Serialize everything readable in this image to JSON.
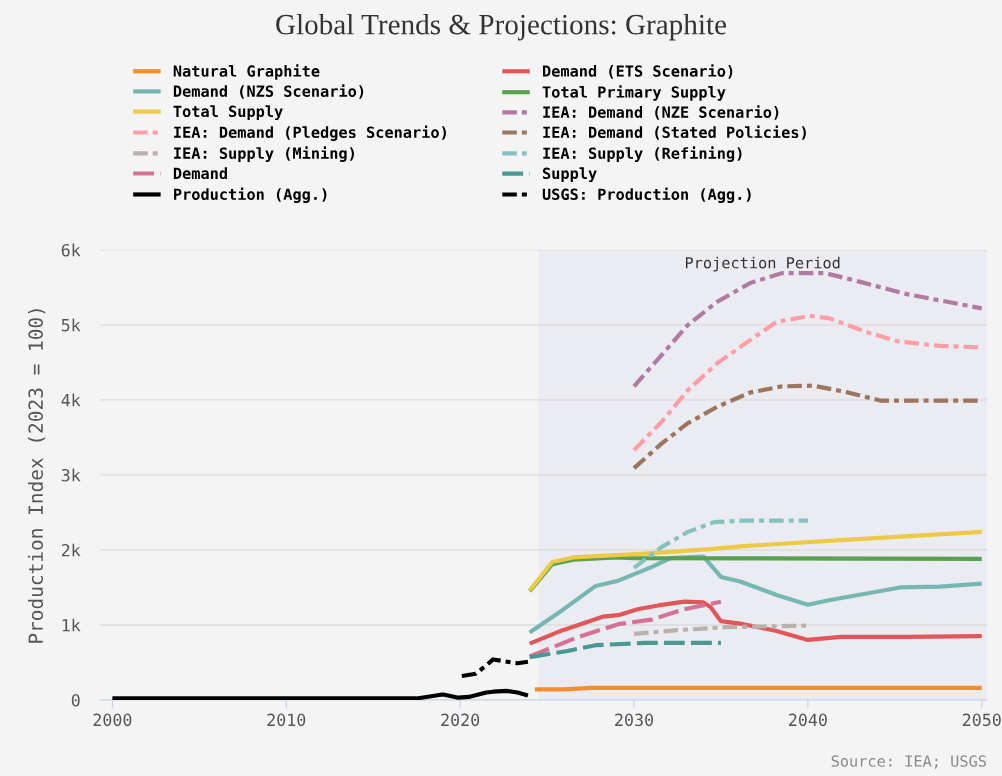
{
  "chart_data": {
    "type": "line",
    "title": "Global Trends & Projections: Graphite",
    "ylabel": "Production Index (2023 = 100)",
    "xlim": [
      1999.3,
      2050.3
    ],
    "xticks": [
      2000,
      2010,
      2020,
      2030,
      2040,
      2050
    ],
    "ylim": [
      0,
      6000
    ],
    "yticks": [
      0,
      {
        "value": 1000,
        "label": "1k"
      },
      {
        "value": 2000,
        "label": "2k"
      },
      {
        "value": 3000,
        "label": "3k"
      },
      {
        "value": 4000,
        "label": "4k"
      },
      {
        "value": 5000,
        "label": "5k"
      },
      {
        "value": 6000,
        "label": "6k"
      }
    ],
    "grid": "y",
    "legend": "top",
    "bands": [
      {
        "axis": "x",
        "from": 2024.5,
        "to": 2050.3,
        "label": "Projection Period",
        "color": "#ebebf2"
      }
    ],
    "annotations": [
      "Source: IEA; USGS"
    ],
    "series": [
      {
        "name": "Natural Graphite",
        "color": "#f28e2b",
        "line_style": "solid",
        "x": [
          2024.3,
          2026,
          2027.5,
          2028,
          2050
        ],
        "values": [
          140,
          140,
          160,
          160,
          160
        ]
      },
      {
        "name": "Demand (ETS Scenario)",
        "color": "#e15759",
        "line_style": "solid",
        "x": [
          2024,
          2025.9,
          2028.2,
          2029.1,
          2030.2,
          2031.4,
          2032.9,
          2034,
          2034.4,
          2035,
          2036.3,
          2038.2,
          2040,
          2041.9,
          2045.7,
          2050
        ],
        "values": [
          750,
          930,
          1110,
          1130,
          1210,
          1260,
          1310,
          1300,
          1240,
          1050,
          1010,
          920,
          800,
          840,
          840,
          850
        ]
      },
      {
        "name": "Demand (NZS Scenario)",
        "color": "#76b7b2",
        "line_style": "solid",
        "x": [
          2024,
          2025.9,
          2027.8,
          2029.1,
          2031,
          2032.1,
          2034,
          2035,
          2036.1,
          2038.2,
          2040,
          2041.2,
          2042.9,
          2045.3,
          2047.6,
          2050
        ],
        "values": [
          900,
          1200,
          1520,
          1590,
          1770,
          1890,
          1910,
          1640,
          1580,
          1400,
          1270,
          1330,
          1400,
          1500,
          1510,
          1550
        ]
      },
      {
        "name": "Total Primary Supply",
        "color": "#59a14f",
        "line_style": "solid",
        "x": [
          2024,
          2025.3,
          2026.5,
          2029,
          2030,
          2050
        ],
        "values": [
          1450,
          1810,
          1870,
          1900,
          1890,
          1880
        ]
      },
      {
        "name": "Total Supply",
        "color": "#edc948",
        "line_style": "solid",
        "x": [
          2024,
          2025.3,
          2026.5,
          2030.6,
          2034.4,
          2036.3,
          2041.9,
          2050
        ],
        "values": [
          1460,
          1840,
          1900,
          1950,
          2010,
          2050,
          2130,
          2240
        ]
      },
      {
        "name": "IEA: Demand (NZE Scenario)",
        "color": "#b07aa1",
        "line_style": "dashdot",
        "x": [
          2030,
          2031.6,
          2033.1,
          2034.8,
          2036.7,
          2038.5,
          2041,
          2042.9,
          2045.7,
          2050
        ],
        "values": [
          4180,
          4600,
          5000,
          5310,
          5560,
          5690,
          5690,
          5580,
          5410,
          5220
        ]
      },
      {
        "name": "IEA: Demand (Pledges Scenario)",
        "color": "#ff9da7",
        "line_style": "dashdot",
        "x": [
          2030,
          2031.6,
          2033.1,
          2034.8,
          2036.7,
          2038.2,
          2040.1,
          2041.2,
          2043.3,
          2045.2,
          2047.6,
          2050
        ],
        "values": [
          3330,
          3710,
          4130,
          4490,
          4800,
          5040,
          5120,
          5090,
          4910,
          4780,
          4720,
          4700
        ]
      },
      {
        "name": "IEA: Demand (Stated Policies)",
        "color": "#9c755f",
        "line_style": "dashdot",
        "x": [
          2030,
          2031.6,
          2033.1,
          2034.8,
          2036.7,
          2038.5,
          2040.3,
          2042.3,
          2044.2,
          2050
        ],
        "values": [
          3090,
          3420,
          3690,
          3910,
          4100,
          4180,
          4190,
          4100,
          3990,
          3990
        ]
      },
      {
        "name": "IEA: Supply (Mining)",
        "color": "#bab0ac",
        "line_style": "dashdot",
        "x": [
          2030,
          2032.5,
          2035.3,
          2039.9
        ],
        "values": [
          880,
          930,
          970,
          990
        ]
      },
      {
        "name": "IEA: Supply (Refining)",
        "color": "#86c2bc",
        "line_style": "dashdot",
        "x": [
          2030,
          2031.6,
          2033.1,
          2034.6,
          2036.3,
          2040
        ],
        "values": [
          1760,
          2040,
          2240,
          2370,
          2390,
          2390
        ]
      },
      {
        "name": "Demand",
        "color": "#d37295",
        "line_style": "dashed",
        "x": [
          2024,
          2026.8,
          2029.1,
          2031,
          2032.9,
          2035
        ],
        "values": [
          580,
          840,
          1010,
          1070,
          1210,
          1310
        ]
      },
      {
        "name": "Supply",
        "color": "#499894",
        "line_style": "dashed",
        "x": [
          2024,
          2026.1,
          2027.8,
          2030.6,
          2035
        ],
        "values": [
          570,
          650,
          730,
          760,
          760
        ]
      },
      {
        "name": "Production (Agg.)",
        "color": "#000000",
        "line_style": "solid",
        "x": [
          2000,
          2017.5,
          2018.9,
          2019.1,
          2019.9,
          2020.5,
          2021.5,
          2021.9,
          2022.7,
          2023.3,
          2023.9
        ],
        "values": [
          20,
          20,
          70,
          70,
          30,
          40,
          100,
          110,
          120,
          100,
          60
        ]
      },
      {
        "name": "USGS: Production (Agg.)",
        "color": "#000000",
        "line_style": "dashdot",
        "x": [
          2020.1,
          2020.9,
          2021.5,
          2021.9,
          2022.7,
          2023.3,
          2023.9
        ],
        "values": [
          320,
          350,
          460,
          540,
          510,
          490,
          510
        ]
      }
    ]
  }
}
